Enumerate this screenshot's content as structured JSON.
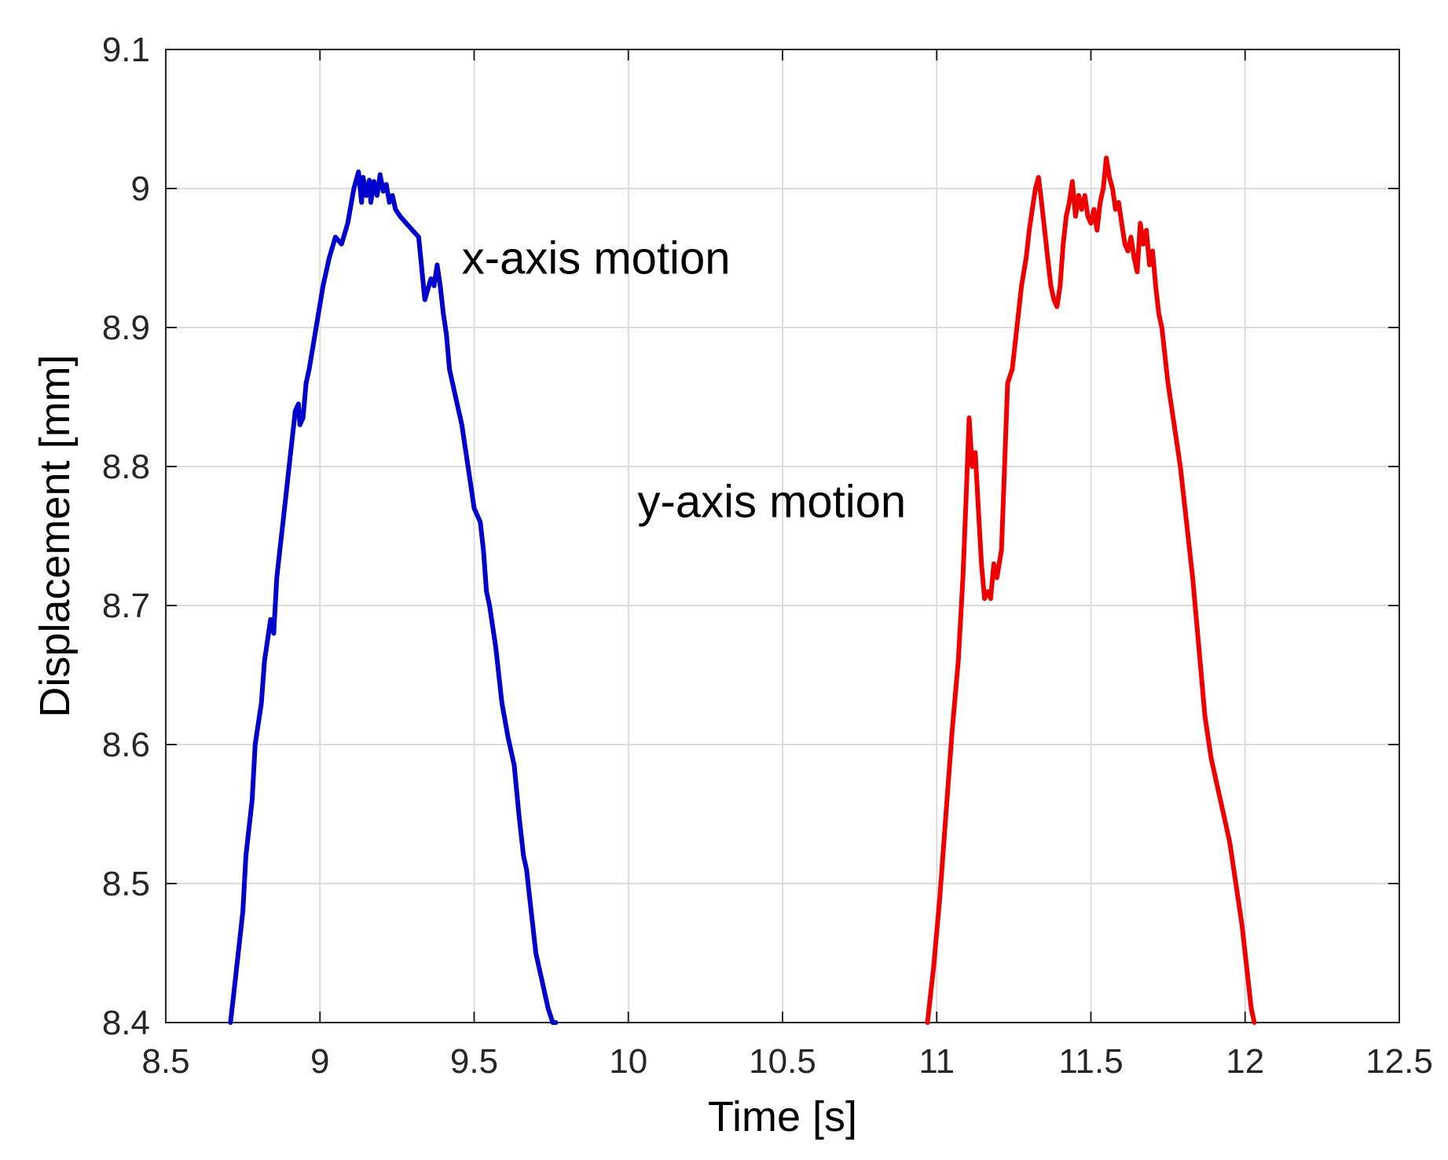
{
  "chart_data": {
    "type": "line",
    "title": "",
    "xlabel": "Time [s]",
    "ylabel": "Displacement [mm]",
    "xlim": [
      8.5,
      12.5
    ],
    "ylim": [
      8.4,
      9.1
    ],
    "xticks": [
      8.5,
      9,
      9.5,
      10,
      10.5,
      11,
      11.5,
      12,
      12.5
    ],
    "xtick_labels": [
      "8.5",
      "9",
      "9.5",
      "10",
      "10.5",
      "11",
      "11.5",
      "12",
      "12.5"
    ],
    "yticks": [
      8.4,
      8.5,
      8.6,
      8.7,
      8.8,
      8.9,
      9,
      9.1
    ],
    "ytick_labels": [
      "8.4",
      "8.5",
      "8.6",
      "8.7",
      "8.8",
      "8.9",
      "9",
      "9.1"
    ],
    "grid": true,
    "legend": "none",
    "annotations": [
      {
        "text": "x-axis motion",
        "x": 9.46,
        "y": 8.95
      },
      {
        "text": "y-axis motion",
        "x": 10.03,
        "y": 8.775
      }
    ],
    "series": [
      {
        "color": "#0000CC",
        "x": [
          8.71,
          8.73,
          8.75,
          8.76,
          8.78,
          8.79,
          8.81,
          8.82,
          8.84,
          8.85,
          8.86,
          8.87,
          8.88,
          8.89,
          8.9,
          8.91,
          8.92,
          8.93,
          8.935,
          8.945,
          8.955,
          8.965,
          8.98,
          8.995,
          9.01,
          9.03,
          9.05,
          9.07,
          9.09,
          9.11,
          9.125,
          9.135,
          9.14,
          9.15,
          9.16,
          9.165,
          9.175,
          9.185,
          9.195,
          9.205,
          9.215,
          9.225,
          9.235,
          9.245,
          9.26,
          9.28,
          9.3,
          9.32,
          9.34,
          9.36,
          9.37,
          9.38,
          9.39,
          9.4,
          9.41,
          9.42,
          9.44,
          9.46,
          9.48,
          9.5,
          9.52,
          9.53,
          9.54,
          9.55,
          9.57,
          9.59,
          9.61,
          9.63,
          9.645,
          9.66,
          9.67,
          9.68,
          9.69,
          9.7,
          9.72,
          9.74,
          9.755,
          9.765
        ],
        "y": [
          8.4,
          8.44,
          8.48,
          8.52,
          8.56,
          8.6,
          8.63,
          8.66,
          8.69,
          8.68,
          8.72,
          8.74,
          8.76,
          8.78,
          8.8,
          8.82,
          8.84,
          8.845,
          8.83,
          8.835,
          8.86,
          8.87,
          8.89,
          8.91,
          8.93,
          8.95,
          8.965,
          8.96,
          8.975,
          9.0,
          9.012,
          8.99,
          9.008,
          8.995,
          9.006,
          8.99,
          9.005,
          8.995,
          9.01,
          8.998,
          9.003,
          8.99,
          8.995,
          8.985,
          8.98,
          8.975,
          8.97,
          8.965,
          8.92,
          8.935,
          8.93,
          8.945,
          8.93,
          8.91,
          8.895,
          8.87,
          8.85,
          8.83,
          8.8,
          8.77,
          8.76,
          8.74,
          8.71,
          8.7,
          8.67,
          8.63,
          8.605,
          8.585,
          8.55,
          8.52,
          8.51,
          8.49,
          8.47,
          8.45,
          8.43,
          8.41,
          8.4,
          8.4
        ]
      },
      {
        "color": "#EE0000",
        "x": [
          10.97,
          10.99,
          11.01,
          11.03,
          11.05,
          11.07,
          11.085,
          11.095,
          11.105,
          11.115,
          11.125,
          11.135,
          11.145,
          11.155,
          11.165,
          11.175,
          11.185,
          11.195,
          11.21,
          11.22,
          11.23,
          11.245,
          11.26,
          11.275,
          11.29,
          11.3,
          11.31,
          11.32,
          11.33,
          11.34,
          11.35,
          11.36,
          11.37,
          11.38,
          11.39,
          11.4,
          11.41,
          11.42,
          11.43,
          11.44,
          11.45,
          11.46,
          11.47,
          11.48,
          11.49,
          11.5,
          11.51,
          11.52,
          11.53,
          11.54,
          11.55,
          11.56,
          11.57,
          11.58,
          11.59,
          11.6,
          11.61,
          11.62,
          11.63,
          11.64,
          11.65,
          11.66,
          11.67,
          11.68,
          11.69,
          11.7,
          11.71,
          11.72,
          11.73,
          11.75,
          11.77,
          11.79,
          11.81,
          11.83,
          11.85,
          11.87,
          11.89,
          11.91,
          11.93,
          11.95,
          11.97,
          11.99,
          12.01,
          12.02,
          12.03
        ],
        "y": [
          8.4,
          8.44,
          8.49,
          8.55,
          8.61,
          8.66,
          8.72,
          8.775,
          8.835,
          8.8,
          8.81,
          8.77,
          8.73,
          8.705,
          8.71,
          8.705,
          8.73,
          8.72,
          8.74,
          8.8,
          8.86,
          8.87,
          8.9,
          8.93,
          8.95,
          8.97,
          8.985,
          9.0,
          9.008,
          8.99,
          8.97,
          8.95,
          8.93,
          8.92,
          8.915,
          8.93,
          8.96,
          8.98,
          8.99,
          9.005,
          8.98,
          8.995,
          8.985,
          8.995,
          8.98,
          8.975,
          8.985,
          8.97,
          8.99,
          9.0,
          9.022,
          9.008,
          9.0,
          8.985,
          8.99,
          8.975,
          8.96,
          8.955,
          8.965,
          8.95,
          8.94,
          8.975,
          8.96,
          8.97,
          8.945,
          8.955,
          8.93,
          8.91,
          8.9,
          8.86,
          8.83,
          8.8,
          8.76,
          8.72,
          8.67,
          8.62,
          8.59,
          8.57,
          8.55,
          8.53,
          8.5,
          8.47,
          8.43,
          8.41,
          8.4
        ]
      }
    ]
  }
}
